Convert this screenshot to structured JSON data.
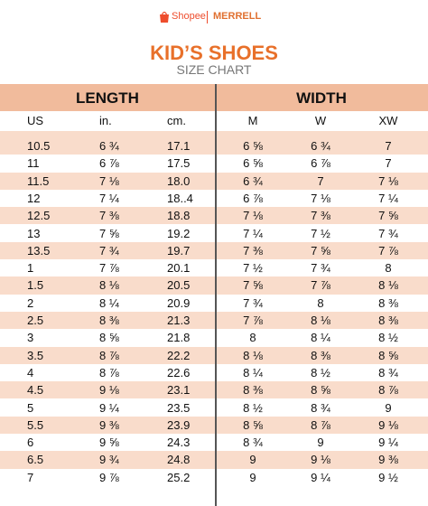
{
  "header": {
    "brand1": "Shopee",
    "brand2": "MERRELL",
    "title": "KID’S SHOES",
    "subtitle": "SIZE CHART"
  },
  "table": {
    "groups": [
      "LENGTH",
      "WIDTH"
    ],
    "columns": [
      "US",
      "in.",
      "cm.",
      "M",
      "W",
      "XW"
    ],
    "rows": [
      [
        "10.5",
        "6 ¾",
        "17.1",
        "6 ⅝",
        "6 ¾",
        "7"
      ],
      [
        "11",
        "6 ⅞",
        "17.5",
        "6 ⅝",
        "6 ⅞",
        "7"
      ],
      [
        "11.5",
        "7 ⅛",
        "18.0",
        "6 ¾",
        "7",
        "7 ⅛"
      ],
      [
        "12",
        "7 ¼",
        "18..4",
        "6 ⅞",
        "7 ⅛",
        "7 ¼"
      ],
      [
        "12.5",
        "7 ⅜",
        "18.8",
        "7 ⅛",
        "7 ⅜",
        "7 ⅝"
      ],
      [
        "13",
        "7 ⅝",
        "19.2",
        "7 ¼",
        "7 ½",
        "7 ¾"
      ],
      [
        "13.5",
        "7 ¾",
        "19.7",
        "7 ⅜",
        "7 ⅝",
        "7 ⅞"
      ],
      [
        "1",
        "7 ⅞",
        "20.1",
        "7 ½",
        "7 ¾",
        "8"
      ],
      [
        "1.5",
        "8 ⅛",
        "20.5",
        "7 ⅝",
        "7 ⅞",
        "8 ⅛"
      ],
      [
        "2",
        "8 ¼",
        "20.9",
        "7 ¾",
        "8",
        "8 ⅜"
      ],
      [
        "2.5",
        "8 ⅜",
        "21.3",
        "7 ⅞",
        "8 ⅛",
        "8 ⅜"
      ],
      [
        "3",
        "8 ⅝",
        "21.8",
        "8",
        "8 ¼",
        "8 ½"
      ],
      [
        "3.5",
        "8 ⅞",
        "22.2",
        "8 ⅛",
        "8 ⅜",
        "8 ⅝"
      ],
      [
        "4",
        "8 ⅞",
        "22.6",
        "8 ¼",
        "8 ½",
        "8 ¾"
      ],
      [
        "4.5",
        "9 ⅛",
        "23.1",
        "8 ⅜",
        "8 ⅝",
        "8 ⅞"
      ],
      [
        "5",
        "9 ¼",
        "23.5",
        "8 ½",
        "8 ¾",
        "9"
      ],
      [
        "5.5",
        "9 ⅜",
        "23.9",
        "8 ⅝",
        "8 ⅞",
        "9 ⅛"
      ],
      [
        "6",
        "9 ⅝",
        "24.3",
        "8 ¾",
        "9",
        "9 ¼"
      ],
      [
        "6.5",
        "9 ¾",
        "24.8",
        "9",
        "9 ⅛",
        "9 ⅜"
      ],
      [
        "7",
        "9 ⅞",
        "25.2",
        "9",
        "9 ¼",
        "9 ½"
      ]
    ]
  }
}
